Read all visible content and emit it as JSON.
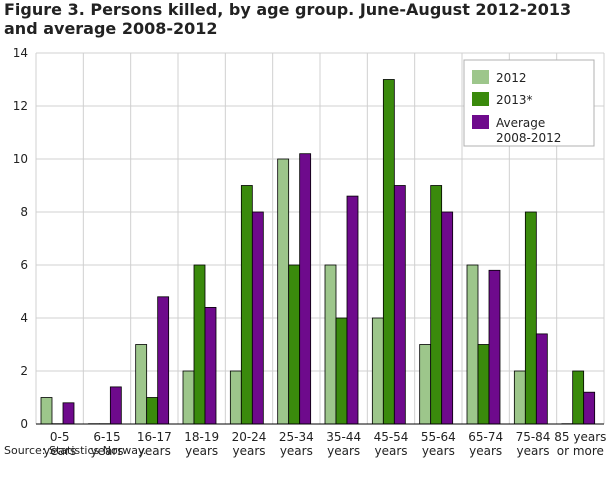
{
  "title": "Figure 3. Persons killed, by age group. June-August 2012-2013 and average 2008-2012",
  "source": "Source: Statistics Norway.",
  "chart_data": {
    "type": "bar",
    "categories": [
      [
        "0-5",
        "years"
      ],
      [
        "6-15",
        "years"
      ],
      [
        "16-17",
        "years"
      ],
      [
        "18-19",
        "years"
      ],
      [
        "20-24",
        "years"
      ],
      [
        "25-34",
        "years"
      ],
      [
        "35-44",
        "years"
      ],
      [
        "45-54",
        "years"
      ],
      [
        "55-64",
        "years"
      ],
      [
        "65-74",
        "years"
      ],
      [
        "75-84",
        "years"
      ],
      [
        "85 years",
        "or more"
      ]
    ],
    "series": [
      {
        "name": "2012",
        "color": "#9dc68b",
        "values": [
          1,
          0,
          3,
          2,
          2,
          10,
          6,
          4,
          3,
          6,
          2,
          0
        ]
      },
      {
        "name": "2013*",
        "color": "#3a8a0c",
        "values": [
          0,
          0,
          1,
          6,
          9,
          6,
          4,
          13,
          9,
          3,
          8,
          2
        ]
      },
      {
        "name": "Average 2008-2012",
        "legend_lines": [
          "Average",
          "2008-2012"
        ],
        "color": "#6e0a8c",
        "values": [
          0.8,
          1.4,
          4.8,
          4.4,
          8,
          10.2,
          8.6,
          9,
          8,
          5.8,
          3.4,
          1.2
        ]
      }
    ],
    "ylim": [
      0,
      14
    ],
    "yticks": [
      0,
      2,
      4,
      6,
      8,
      10,
      12,
      14
    ],
    "grid": true,
    "legend_position": "top-right"
  }
}
